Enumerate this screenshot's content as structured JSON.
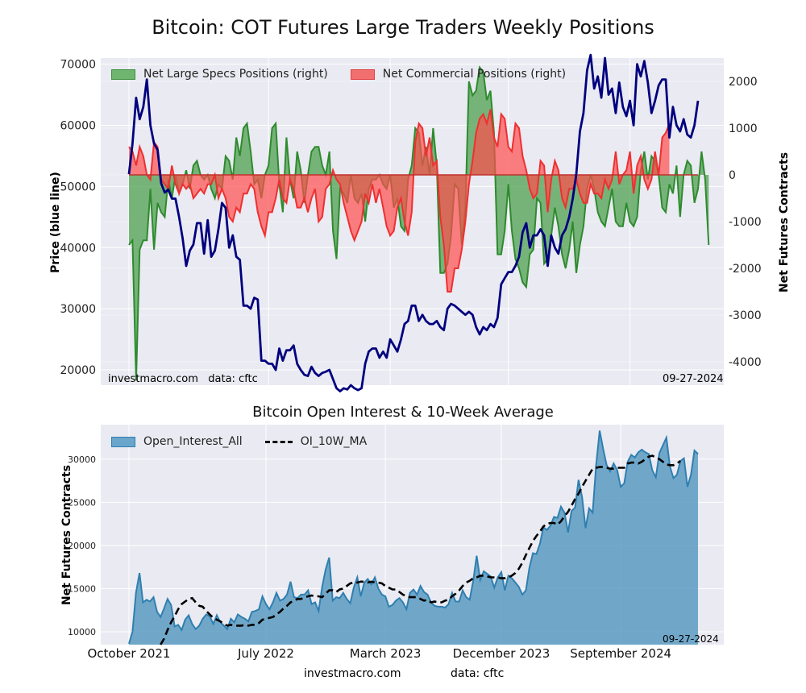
{
  "title": "Bitcoin: COT Futures Large Traders Weekly Positions",
  "subtitle": "Bitcoin Open Interest & 10-Week Average",
  "watermark_left": "investmacro.com   data: cftc",
  "date_note": "09-27-2024",
  "footer": {
    "site": "investmacro.com",
    "source": "data: cftc"
  },
  "colors": {
    "price": "#00007f",
    "specs": "#4a9e4a",
    "commercial": "#f25b5b",
    "oi_fill": "#5b9bc2",
    "oi_line": "#2f7fb0",
    "ma": "#000000",
    "plot_bg": "#eaeaf2"
  },
  "chart_data": [
    {
      "type": "line",
      "title": "Bitcoin: COT Futures Large Traders Weekly Positions",
      "ylabel": "Price (blue line)",
      "y2label": "Net Futures Contracts",
      "ylim": [
        17500,
        71000
      ],
      "y2lim": [
        -4500,
        2500
      ],
      "yticks": [
        20000,
        30000,
        40000,
        50000,
        60000,
        70000
      ],
      "y2ticks": [
        -4000,
        -3000,
        -2000,
        -1000,
        0,
        1000,
        2000
      ],
      "legend": "top-left",
      "grid": true,
      "series": [
        {
          "name": "Net Large Specs Positions (right)",
          "axis": "right",
          "kind": "area",
          "values": [
            -1500,
            -1400,
            -4400,
            -1600,
            -1400,
            -1400,
            -300,
            -1600,
            -600,
            -800,
            -900,
            -100,
            -500,
            0,
            -400,
            -200,
            100,
            -300,
            200,
            300,
            0,
            -100,
            0,
            -300,
            -500,
            -200,
            -300,
            400,
            300,
            -100,
            800,
            400,
            1000,
            1100,
            500,
            -200,
            -100,
            -500,
            0,
            200,
            1000,
            1100,
            -200,
            -800,
            800,
            -100,
            -500,
            500,
            100,
            -600,
            0,
            500,
            600,
            600,
            200,
            0,
            500,
            -1200,
            -1800,
            -300,
            -400,
            -600,
            0,
            -500,
            -600,
            -400,
            -1000,
            -300,
            -100,
            -100,
            0,
            -200,
            -300,
            0,
            -700,
            -500,
            -1100,
            -1200,
            -100,
            200,
            1000,
            900,
            200,
            600,
            0,
            1000,
            200,
            -2100,
            -2100,
            -1900,
            -1300,
            -200,
            -300,
            -1500,
            -700,
            2000,
            1700,
            1800,
            2300,
            2200,
            1600,
            1800,
            900,
            -1700,
            -1700,
            -1200,
            -200,
            -1200,
            -1800,
            -2000,
            -2300,
            -2400,
            -1700,
            -1600,
            -500,
            -600,
            -1900,
            -1800,
            -1300,
            -700,
            -1100,
            -1700,
            -2000,
            -1600,
            -1000,
            -2100,
            -1500,
            -1100,
            -300,
            0,
            -300,
            -800,
            -1000,
            -1100,
            -700,
            -300,
            -1000,
            -1100,
            -1100,
            -600,
            -1000,
            -1100,
            -900,
            100,
            500,
            -100,
            400,
            300,
            0,
            -700,
            -800,
            -200,
            -400,
            200,
            -900,
            0,
            300,
            200,
            -600,
            -300,
            500,
            -100,
            -1500
          ]
        },
        {
          "name": "Net Commercial Positions (right)",
          "axis": "right",
          "kind": "area",
          "values": [
            600,
            500,
            200,
            600,
            400,
            0,
            -100,
            700,
            600,
            -100,
            -200,
            -300,
            200,
            -200,
            -400,
            -200,
            -300,
            -200,
            -500,
            -400,
            -300,
            -400,
            -200,
            -200,
            0,
            -500,
            -300,
            -500,
            -900,
            -1000,
            -700,
            -800,
            -400,
            -400,
            -200,
            -300,
            -800,
            -1100,
            -1300,
            -800,
            -800,
            -500,
            -100,
            -500,
            -600,
            -100,
            -300,
            -700,
            -700,
            -500,
            -800,
            -500,
            -300,
            -1000,
            -900,
            -300,
            -200,
            100,
            -100,
            -200,
            -600,
            -900,
            -1200,
            -1400,
            -1200,
            -1000,
            -400,
            -600,
            -200,
            -600,
            -300,
            -700,
            -1100,
            -1300,
            -1200,
            -700,
            -500,
            -1000,
            -1300,
            -800,
            700,
            1100,
            1000,
            400,
            800,
            200,
            300,
            -900,
            -1500,
            -2500,
            -2500,
            -2000,
            -2000,
            -1600,
            -1000,
            -200,
            300,
            900,
            1200,
            1300,
            1100,
            1400,
            800,
            600,
            1300,
            1200,
            600,
            500,
            1100,
            1000,
            400,
            100,
            -300,
            -500,
            -400,
            300,
            200,
            -800,
            -100,
            300,
            100,
            -500,
            -700,
            -300,
            -300,
            -100,
            -400,
            -600,
            -600,
            -200,
            -400,
            -400,
            -500,
            -100,
            -300,
            -100,
            500,
            -200,
            0,
            100,
            500,
            -400,
            200,
            400,
            -100,
            -300,
            -100,
            500,
            0,
            800,
            900,
            1100
          ]
        },
        {
          "name": "Price",
          "axis": "left",
          "kind": "line",
          "values": [
            52000,
            57000,
            64500,
            61000,
            63000,
            67500,
            60000,
            57000,
            56000,
            50500,
            49000,
            49500,
            48000,
            48000,
            45000,
            41500,
            37000,
            39500,
            40500,
            44000,
            44000,
            39000,
            44500,
            38500,
            39500,
            43000,
            47300,
            46500,
            40000,
            42000,
            38500,
            38000,
            30500,
            30500,
            30000,
            31800,
            31500,
            21500,
            21500,
            21000,
            21000,
            20000,
            23500,
            21500,
            23200,
            23200,
            24000,
            21000,
            20000,
            19200,
            19000,
            20500,
            19500,
            19000,
            19500,
            19700,
            20000,
            18500,
            17000,
            16500,
            17000,
            16800,
            17500,
            17000,
            16700,
            17000,
            21000,
            23000,
            23500,
            23500,
            22000,
            23000,
            22000,
            25000,
            24000,
            23000,
            25000,
            27500,
            28000,
            30500,
            30500,
            28000,
            29000,
            28000,
            27500,
            27500,
            28000,
            27000,
            26500,
            30000,
            30800,
            30500,
            30000,
            29500,
            29000,
            29500,
            29000,
            27000,
            25800,
            27000,
            26500,
            27500,
            27000,
            28500,
            34000,
            35000,
            36000,
            36000,
            37000,
            38500,
            42500,
            44000,
            40000,
            42000,
            42000,
            43000,
            42000,
            37000,
            42000,
            40000,
            39000,
            42000,
            43000,
            45000,
            48000,
            52000,
            59000,
            62000,
            69000,
            71500,
            66000,
            68000,
            64500,
            71000,
            65000,
            66000,
            62000,
            67000,
            63000,
            61500,
            64000,
            60000,
            70000,
            68000,
            70500,
            67000,
            62000,
            64000,
            66500,
            67500,
            67500,
            58000,
            63000,
            60000,
            59000,
            61000,
            58500,
            58000,
            60000,
            64000
          ]
        }
      ]
    },
    {
      "type": "area",
      "title": "Bitcoin Open Interest & 10-Week Average",
      "ylabel": "Net Futures Contracts",
      "ylim": [
        8500,
        34000
      ],
      "yticks": [
        10000,
        15000,
        20000,
        25000,
        30000
      ],
      "xticks": [
        "October 2021",
        "July 2022",
        "March 2023",
        "December 2023",
        "September 2024"
      ],
      "xtick_index": [
        0,
        39,
        73,
        106,
        140
      ],
      "legend": "top-left",
      "grid": true,
      "series": [
        {
          "name": "Open_Interest_All",
          "kind": "area",
          "values": [
            8600,
            10000,
            14500,
            16800,
            13400,
            13700,
            13500,
            14000,
            12300,
            11700,
            12700,
            13800,
            13100,
            10600,
            10800,
            10200,
            11400,
            11900,
            10900,
            10300,
            10700,
            11500,
            12000,
            11800,
            10900,
            11900,
            11100,
            10700,
            10300,
            11500,
            11100,
            12000,
            11700,
            11500,
            11200,
            12300,
            12400,
            12600,
            14100,
            13200,
            12600,
            13400,
            14500,
            13600,
            13800,
            14300,
            15800,
            14000,
            13900,
            14300,
            14300,
            14800,
            13200,
            13400,
            12400,
            15200,
            17200,
            18600,
            13600,
            14000,
            13900,
            14500,
            13800,
            13300,
            15100,
            16300,
            14100,
            15700,
            16100,
            15500,
            16300,
            15000,
            14300,
            14100,
            12900,
            13100,
            13600,
            13900,
            13400,
            12600,
            14500,
            14900,
            14300,
            15300,
            14600,
            14300,
            13400,
            13000,
            12900,
            12900,
            12800,
            13200,
            14500,
            13500,
            13500,
            14800,
            14000,
            13700,
            15900,
            18800,
            16000,
            17000,
            16700,
            16400,
            15100,
            16300,
            16900,
            14800,
            16500,
            16200,
            15700,
            15200,
            14300,
            14800,
            17400,
            19100,
            19000,
            20200,
            22100,
            21800,
            22300,
            23300,
            23200,
            24500,
            23800,
            21500,
            24000,
            24400,
            27600,
            25600,
            22000,
            24300,
            23800,
            29300,
            33300,
            31200,
            29300,
            28600,
            29500,
            28700,
            26800,
            27200,
            29700,
            30500,
            30200,
            30800,
            31100,
            30800,
            30600,
            28700,
            27900,
            30700,
            31600,
            32500,
            29200,
            27800,
            28200,
            29800,
            30100,
            26800,
            28200,
            31000,
            30600
          ]
        },
        {
          "name": "OI_10W_MA",
          "kind": "line",
          "values": [
            null,
            null,
            null,
            null,
            null,
            null,
            null,
            null,
            null,
            8500,
            9200,
            10200,
            11100,
            11800,
            12600,
            13200,
            13500,
            13800,
            13900,
            13400,
            13000,
            12900,
            12400,
            12000,
            11600,
            11400,
            11200,
            10900,
            10700,
            10800,
            10700,
            10700,
            10700,
            10800,
            10700,
            10800,
            10800,
            11000,
            11400,
            11500,
            11600,
            11700,
            12000,
            12300,
            12700,
            13000,
            13400,
            13600,
            13800,
            13800,
            14000,
            14100,
            14200,
            14100,
            14100,
            14000,
            14400,
            14800,
            14800,
            14600,
            14900,
            15000,
            15300,
            15600,
            15700,
            15700,
            15800,
            15800,
            15700,
            15800,
            15700,
            15700,
            15600,
            15300,
            15100,
            14900,
            14900,
            14600,
            14300,
            14100,
            14000,
            14000,
            14000,
            13800,
            13600,
            13700,
            13400,
            13500,
            13400,
            13400,
            13600,
            13700,
            14100,
            14400,
            14800,
            15300,
            15700,
            15900,
            16200,
            16300,
            16500,
            16500,
            16400,
            16300,
            16300,
            16300,
            16200,
            16200,
            16300,
            16500,
            16800,
            17300,
            18000,
            18900,
            19700,
            20500,
            21100,
            21600,
            22200,
            22500,
            22600,
            22600,
            22400,
            22800,
            23400,
            23900,
            24600,
            25400,
            26000,
            26800,
            27500,
            28200,
            28900,
            29000,
            29100,
            29100,
            29000,
            28900,
            28900,
            29000,
            29000,
            29000,
            29500,
            29600,
            29600,
            29500,
            29700,
            30000,
            30300,
            30400,
            30200,
            30000,
            29700,
            29400,
            29300,
            29300,
            29500,
            29800
          ]
        }
      ]
    }
  ]
}
